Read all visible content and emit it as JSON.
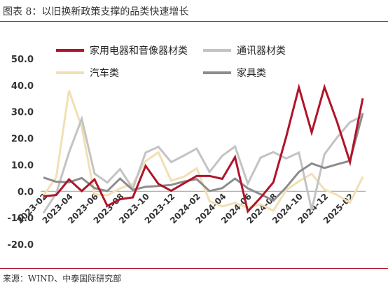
{
  "header": {
    "title": "图表 8：以旧换新政策支撑的品类快速增长"
  },
  "footer": {
    "source": "来源：WIND、中泰国际研究部"
  },
  "chart_data": {
    "type": "line",
    "ylim": [
      -20,
      50
    ],
    "yticks": [
      "50.0",
      "40.0",
      "30.0",
      "20.0",
      "10.0",
      "0.0",
      "-10.0",
      "-20.0"
    ],
    "ytick_values": [
      50,
      40,
      30,
      20,
      10,
      0,
      -10,
      -20
    ],
    "x": [
      "2023-02",
      "2023-03",
      "2023-04",
      "2023-05",
      "2023-06",
      "2023-07",
      "2023-08",
      "2023-09",
      "2023-10",
      "2023-11",
      "2023-12",
      "2024-01",
      "2024-02",
      "2024-03",
      "2024-04",
      "2024-05",
      "2024-06",
      "2024-07",
      "2024-08",
      "2024-09",
      "2024-10",
      "2024-11",
      "2024-12",
      "2025-01",
      "2025-02",
      "2025-03"
    ],
    "xtick_labels": [
      "2023-02",
      "2023-04",
      "2023-06",
      "2023-08",
      "2023-10",
      "2023-12",
      "2024-02",
      "2024-04",
      "2024-06",
      "2024-08",
      "2024-10",
      "2024-12",
      "2025-02"
    ],
    "legend_position": "top",
    "series": [
      {
        "name": "家用电器和音像器材类",
        "color": "#b0142a",
        "width": 3,
        "values": [
          -1.9,
          -1.4,
          4.5,
          0.1,
          4.5,
          -5.5,
          -3.0,
          -2.3,
          9.6,
          2.8,
          0.2,
          3.0,
          5.8,
          5.8,
          4.7,
          12.9,
          -7.6,
          -2.4,
          3.4,
          20.5,
          39.2,
          22.2,
          39.3,
          26.0,
          11.0,
          35.1
        ]
      },
      {
        "name": "通讯器材类",
        "color": "#c3c3c3",
        "width": 3,
        "values": [
          -8.2,
          -0.8,
          14.6,
          27.4,
          6.7,
          3.3,
          8.4,
          1.0,
          14.6,
          16.8,
          11.0,
          13.5,
          16.1,
          7.3,
          13.4,
          16.9,
          2.9,
          12.7,
          14.8,
          12.4,
          14.6,
          -7.0,
          14.0,
          20.4,
          26.1,
          28.4
        ]
      },
      {
        "name": "汽车类",
        "color": "#f2dfb4",
        "width": 3,
        "values": [
          -1.6,
          5.3,
          38.0,
          24.2,
          -1.1,
          -1.5,
          1.1,
          2.8,
          11.4,
          14.7,
          4.0,
          5.5,
          8.7,
          -3.7,
          -5.7,
          -4.4,
          -6.2,
          -4.9,
          -7.3,
          0.4,
          3.8,
          6.6,
          0.7,
          -1.4,
          -4.3,
          5.5
        ]
      },
      {
        "name": "家具类",
        "color": "#8c8c8c",
        "width": 3,
        "values": [
          5.2,
          3.6,
          3.4,
          5.0,
          1.2,
          0.1,
          4.8,
          0.5,
          1.7,
          2.0,
          2.4,
          3.7,
          4.6,
          0.1,
          1.2,
          4.8,
          1.1,
          -1.1,
          -3.5,
          1.5,
          7.3,
          10.5,
          8.8,
          10.2,
          11.5,
          29.5
        ]
      }
    ]
  }
}
